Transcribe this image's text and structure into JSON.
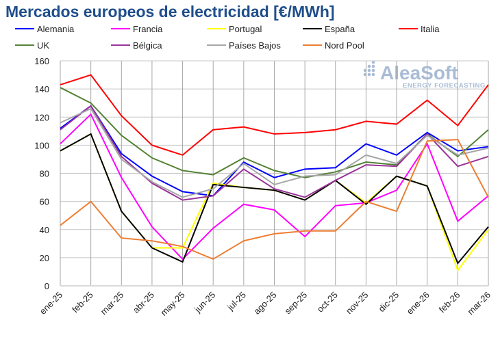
{
  "chart_data": {
    "type": "line",
    "title": "Mercados europeos de electricidad [€/MWh]",
    "xlabel": "",
    "ylabel": "",
    "ylim": [
      0,
      160
    ],
    "yticks": [
      0,
      20,
      40,
      60,
      80,
      100,
      120,
      140,
      160
    ],
    "grid": true,
    "legend_position": "top",
    "watermark": {
      "logo": "AleaSoft",
      "subtitle": "ENERGY FORECASTING"
    },
    "categories": [
      "ene-25",
      "feb-25",
      "mar-25",
      "abr-25",
      "may-25",
      "jun-25",
      "jul-25",
      "ago-25",
      "sep-25",
      "oct-25",
      "nov-25",
      "dic-25",
      "ene-26",
      "feb-26",
      "mar-26"
    ],
    "series": [
      {
        "name": "Alemania",
        "color": "#0000ff",
        "values": [
          112,
          128,
          94,
          78,
          67,
          64,
          88,
          77,
          83,
          84,
          101,
          93,
          109,
          96,
          99
        ]
      },
      {
        "name": "Francia",
        "color": "#ff00ff",
        "values": [
          101,
          122,
          77,
          42,
          19,
          41,
          58,
          54,
          35,
          57,
          59,
          68,
          101,
          46,
          64
        ]
      },
      {
        "name": "Portugal",
        "color": "#ffff00",
        "values": [
          96,
          108,
          53,
          27,
          27,
          73,
          70,
          68,
          61,
          75,
          59,
          78,
          71,
          11,
          40
        ]
      },
      {
        "name": "España",
        "color": "#000000",
        "values": [
          96,
          108,
          53,
          27,
          17,
          72,
          70,
          68,
          61,
          75,
          58,
          78,
          71,
          16,
          42
        ]
      },
      {
        "name": "Italia",
        "color": "#ff0000",
        "values": [
          143,
          150,
          121,
          100,
          93,
          111,
          113,
          108,
          109,
          111,
          117,
          115,
          132,
          114,
          143
        ]
      },
      {
        "name": "UK",
        "color": "#548235",
        "values": [
          141,
          130,
          107,
          91,
          82,
          79,
          91,
          82,
          77,
          81,
          88,
          86,
          108,
          92,
          111
        ]
      },
      {
        "name": "Bélgica",
        "color": "#993399",
        "values": [
          111,
          128,
          92,
          73,
          61,
          64,
          83,
          69,
          63,
          75,
          86,
          85,
          108,
          85,
          92
        ]
      },
      {
        "name": "Países Bajos",
        "color": "#a6a6a6",
        "values": [
          116,
          126,
          90,
          74,
          63,
          69,
          87,
          72,
          78,
          79,
          93,
          87,
          107,
          93,
          98
        ]
      },
      {
        "name": "Nord Pool",
        "color": "#ed7d31",
        "values": [
          43,
          60,
          34,
          32,
          28,
          19,
          32,
          37,
          39,
          39,
          60,
          53,
          103,
          104,
          63
        ]
      }
    ]
  }
}
